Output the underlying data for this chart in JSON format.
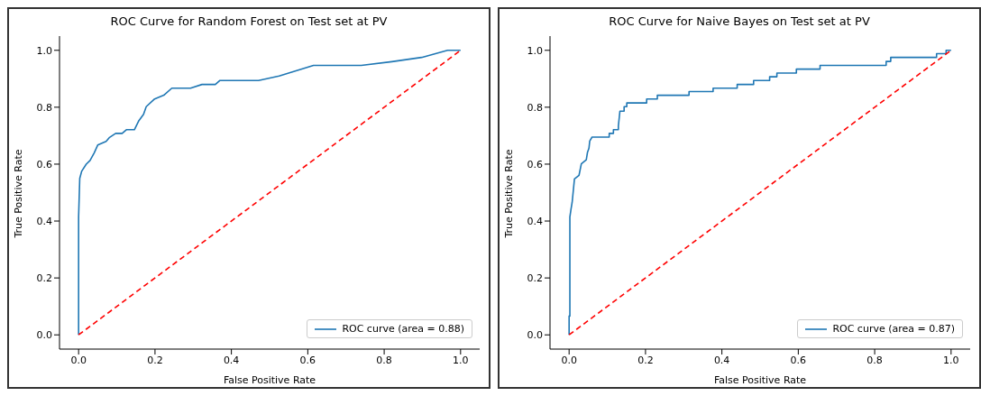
{
  "chart_data": [
    {
      "type": "line",
      "title": "ROC Curve for Random Forest on Test set at PV",
      "xlabel": "False Positive Rate",
      "ylabel": "True Positive Rate",
      "xlim": [
        -0.05,
        1.05
      ],
      "ylim": [
        -0.05,
        1.05
      ],
      "xticks": [
        {
          "value": 0,
          "label": "0.0"
        },
        {
          "value": 0.2,
          "label": "0.2"
        },
        {
          "value": 0.4,
          "label": "0.4"
        },
        {
          "value": 0.6,
          "label": "0.6"
        },
        {
          "value": 0.8,
          "label": "0.8"
        },
        {
          "value": 1,
          "label": "1.0"
        }
      ],
      "yticks": [
        {
          "value": 0,
          "label": "0.0"
        },
        {
          "value": 0.2,
          "label": "0.2"
        },
        {
          "value": 0.4,
          "label": "0.4"
        },
        {
          "value": 0.6,
          "label": "0.6"
        },
        {
          "value": 0.8,
          "label": "0.8"
        },
        {
          "value": 1,
          "label": "1.0"
        }
      ],
      "legend": "bottom right",
      "grid": false,
      "series": [
        {
          "name": "ROC curve (area = 0.88)",
          "color": "#1f77b4",
          "line_style": "solid",
          "x": [
            0,
            0,
            0.003,
            0.008,
            0.02,
            0.03,
            0.041,
            0.05,
            0.072,
            0.081,
            0.097,
            0.114,
            0.125,
            0.146,
            0.157,
            0.17,
            0.177,
            0.199,
            0.223,
            0.244,
            0.293,
            0.323,
            0.358,
            0.37,
            0.471,
            0.525,
            0.615,
            0.74,
            0.82,
            0.898,
            0.966,
            1
          ],
          "values": [
            0,
            0.414,
            0.55,
            0.575,
            0.6,
            0.613,
            0.64,
            0.667,
            0.68,
            0.694,
            0.708,
            0.708,
            0.721,
            0.721,
            0.751,
            0.775,
            0.802,
            0.829,
            0.842,
            0.867,
            0.867,
            0.88,
            0.88,
            0.894,
            0.894,
            0.91,
            0.947,
            0.947,
            0.96,
            0.975,
            1,
            1
          ]
        },
        {
          "color": "#ff0000",
          "line_style": "dashed",
          "x": [
            0,
            1
          ],
          "values": [
            0,
            1
          ]
        }
      ]
    },
    {
      "type": "line",
      "title": "ROC Curve for Naive Bayes on Test set at PV",
      "xlabel": "False Positive Rate",
      "ylabel": "True Positive Rate",
      "xlim": [
        -0.05,
        1.05
      ],
      "ylim": [
        -0.05,
        1.05
      ],
      "xticks": [
        {
          "value": 0,
          "label": "0.0"
        },
        {
          "value": 0.2,
          "label": "0.2"
        },
        {
          "value": 0.4,
          "label": "0.4"
        },
        {
          "value": 0.6,
          "label": "0.6"
        },
        {
          "value": 0.8,
          "label": "0.8"
        },
        {
          "value": 1,
          "label": "1.0"
        }
      ],
      "yticks": [
        {
          "value": 0,
          "label": "0.0"
        },
        {
          "value": 0.2,
          "label": "0.2"
        },
        {
          "value": 0.4,
          "label": "0.4"
        },
        {
          "value": 0.6,
          "label": "0.6"
        },
        {
          "value": 0.8,
          "label": "0.8"
        },
        {
          "value": 1,
          "label": "1.0"
        }
      ],
      "legend": "bottom right",
      "grid": false,
      "series": [
        {
          "name": "ROC curve (area = 0.87)",
          "color": "#1f77b4",
          "line_style": "solid",
          "x": [
            0,
            0,
            0.002,
            0.002,
            0.005,
            0.008,
            0.014,
            0.026,
            0.032,
            0.045,
            0.048,
            0.052,
            0.054,
            0.06,
            0.105,
            0.105,
            0.116,
            0.116,
            0.129,
            0.129,
            0.133,
            0.144,
            0.144,
            0.151,
            0.151,
            0.203,
            0.203,
            0.231,
            0.231,
            0.314,
            0.314,
            0.377,
            0.377,
            0.44,
            0.44,
            0.483,
            0.483,
            0.525,
            0.525,
            0.544,
            0.544,
            0.595,
            0.595,
            0.657,
            0.657,
            0.83,
            0.83,
            0.842,
            0.842,
            0.962,
            0.962,
            0.987,
            0.987,
            1
          ],
          "values": [
            0,
            0.066,
            0.066,
            0.414,
            0.442,
            0.466,
            0.548,
            0.561,
            0.601,
            0.615,
            0.641,
            0.656,
            0.681,
            0.695,
            0.695,
            0.708,
            0.708,
            0.721,
            0.721,
            0.734,
            0.786,
            0.786,
            0.802,
            0.802,
            0.815,
            0.815,
            0.829,
            0.829,
            0.842,
            0.842,
            0.855,
            0.855,
            0.867,
            0.867,
            0.88,
            0.88,
            0.894,
            0.894,
            0.907,
            0.907,
            0.92,
            0.92,
            0.934,
            0.934,
            0.947,
            0.947,
            0.961,
            0.961,
            0.975,
            0.975,
            0.988,
            0.988,
            1,
            1
          ]
        },
        {
          "color": "#ff0000",
          "line_style": "dashed",
          "x": [
            0,
            1
          ],
          "values": [
            0,
            1
          ]
        }
      ]
    }
  ]
}
